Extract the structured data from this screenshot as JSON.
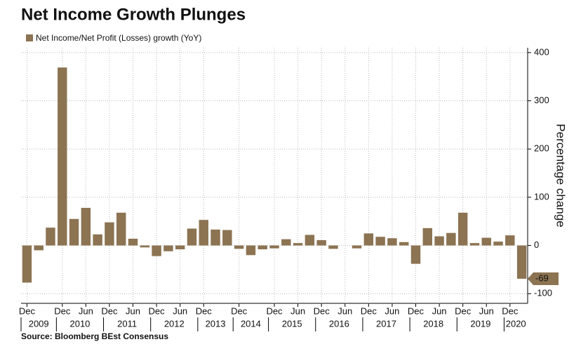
{
  "chart_data": {
    "type": "bar",
    "title": "Net Income Growth Plunges",
    "legend_label": "Net Income/Net Profit (Losses) growth (YoY)",
    "y_axis_label": "Percentage change",
    "source": "Source: Bloomberg BEst Consensus",
    "color": "#8c7352",
    "categories": [
      "Dec",
      null,
      null,
      "Dec",
      null,
      "Jun",
      null,
      "Dec",
      null,
      "Jun",
      null,
      "Dec",
      null,
      "Jun",
      null,
      "Dec",
      null,
      null,
      "Dec",
      null,
      null,
      "Dec",
      null,
      "Jun",
      null,
      "Dec",
      null,
      "Jun",
      null,
      "Dec",
      null,
      "Jun",
      null,
      "Dec",
      null,
      "Jun",
      null,
      "Dec",
      null,
      "Jun",
      null,
      "Dec",
      null
    ],
    "year_labels": [
      "2009",
      "2010",
      "2011",
      "2012",
      "2013",
      "2014",
      "2015",
      "2016",
      "2017",
      "2018",
      "2019",
      "2020"
    ],
    "values": [
      -77,
      -10,
      37,
      369,
      55,
      78,
      23,
      48,
      68,
      14,
      -4,
      -22,
      -12,
      -8,
      35,
      53,
      33,
      32,
      -7,
      -20,
      -8,
      -6,
      13,
      5,
      22,
      11,
      -7,
      0,
      -6,
      25,
      18,
      15,
      7,
      -38,
      36,
      19,
      26,
      68,
      5,
      16,
      8,
      21,
      -69
    ],
    "value_labels": [
      null,
      null,
      null,
      null,
      null,
      null,
      null,
      null,
      null,
      null,
      null,
      null,
      null,
      null,
      null,
      null,
      null,
      null,
      null,
      null,
      null,
      null,
      null,
      null,
      null,
      null,
      null,
      null,
      null,
      null,
      null,
      null,
      null,
      null,
      null,
      null,
      null,
      null,
      null,
      null,
      null,
      null,
      "-69"
    ],
    "ylim": [
      -120,
      410
    ],
    "yticks": [
      -100,
      0,
      100,
      200,
      300,
      400
    ],
    "y_axis_side": "right",
    "grid": true
  }
}
